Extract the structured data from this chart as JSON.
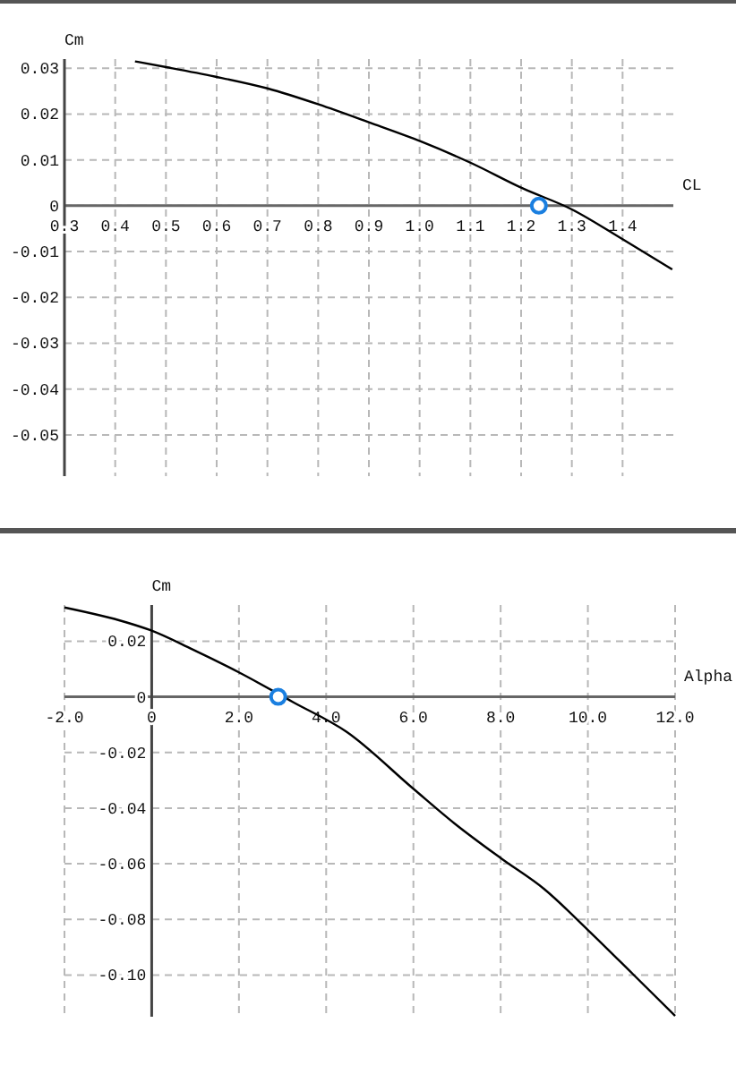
{
  "chart_data": [
    {
      "type": "line",
      "xlabel": "CL",
      "ylabel": "Cm",
      "grid": true,
      "xlim": [
        0.3,
        1.5
      ],
      "ylim": [
        -0.059,
        0.032
      ],
      "xticks": [
        {
          "value": 0.3,
          "label": "0.3"
        },
        {
          "value": 0.4,
          "label": "0.4"
        },
        {
          "value": 0.5,
          "label": "0.5"
        },
        {
          "value": 0.6,
          "label": "0.6"
        },
        {
          "value": 0.7,
          "label": "0.7"
        },
        {
          "value": 0.8,
          "label": "0.8"
        },
        {
          "value": 0.9,
          "label": "0.9"
        },
        {
          "value": 1.0,
          "label": "1.0"
        },
        {
          "value": 1.1,
          "label": "1.1"
        },
        {
          "value": 1.2,
          "label": "1.2"
        },
        {
          "value": 1.3,
          "label": "1.3"
        },
        {
          "value": 1.4,
          "label": "1.4"
        }
      ],
      "yticks": [
        0.03,
        0.02,
        0.01,
        0,
        -0.01,
        -0.02,
        -0.03,
        -0.04,
        -0.05
      ],
      "series": [
        {
          "color": "#000000",
          "marker": "none",
          "x": [
            0.439,
            0.503,
            0.596,
            0.7,
            0.801,
            0.9,
            1.003,
            1.1,
            1.203,
            1.3,
            1.4,
            1.498
          ],
          "values": [
            0.0315,
            0.0302,
            0.0282,
            0.0256,
            0.0221,
            0.0182,
            0.014,
            0.0094,
            0.0038,
            -0.0008,
            -0.0073,
            -0.0139
          ]
        },
        {
          "type": "scatter",
          "color": "#1a7fe0",
          "marker": "circle",
          "x": [
            1.235
          ],
          "values": [
            0
          ]
        }
      ]
    },
    {
      "type": "line",
      "xlabel": "Alpha",
      "ylabel": "Cm",
      "grid": true,
      "xlim": [
        -2,
        12
      ],
      "ylim": [
        -0.115,
        0.033
      ],
      "xticks": [
        {
          "value": -2,
          "label": "-2.0"
        },
        0,
        {
          "value": 2,
          "label": "2.0"
        },
        {
          "value": 4,
          "label": "4.0"
        },
        {
          "value": 6,
          "label": "6.0"
        },
        {
          "value": 8,
          "label": "8.0"
        },
        {
          "value": 10,
          "label": "10.0"
        },
        {
          "value": 12,
          "label": "12.0"
        }
      ],
      "yticks": [
        0.02,
        0,
        -0.02,
        -0.04,
        -0.06,
        -0.08,
        {
          "value": -0.1,
          "label": "-0.10"
        }
      ],
      "series": [
        {
          "color": "#000000",
          "marker": "none",
          "x": [
            -2,
            -0.59,
            -0.04,
            0.915,
            2.01,
            3.24,
            4.47,
            5.98,
            6.94,
            8.03,
            8.99,
            10,
            11.04,
            12
          ],
          "values": [
            0.0321,
            0.0268,
            0.024,
            0.0172,
            0.0087,
            -0.0019,
            -0.0126,
            -0.0328,
            -0.0455,
            -0.0583,
            -0.069,
            -0.0838,
            -0.0998,
            -0.1147
          ]
        },
        {
          "type": "scatter",
          "color": "#1a7fe0",
          "marker": "circle",
          "x": [
            2.9
          ],
          "values": [
            0
          ]
        }
      ]
    }
  ]
}
